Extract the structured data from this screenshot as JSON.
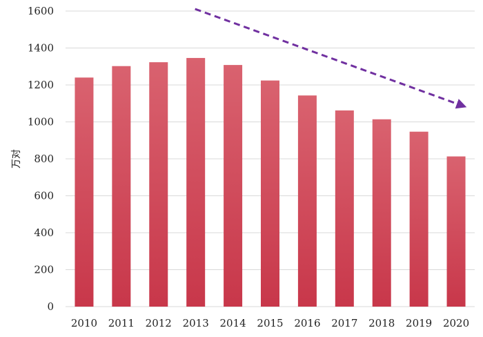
{
  "chart_data": {
    "type": "bar",
    "categories": [
      "2010",
      "2011",
      "2012",
      "2013",
      "2014",
      "2015",
      "2016",
      "2017",
      "2018",
      "2019",
      "2020"
    ],
    "values": [
      1240,
      1302,
      1323,
      1346,
      1308,
      1224,
      1143,
      1062,
      1014,
      947,
      813
    ],
    "title": "",
    "xlabel": "",
    "ylabel": "万对",
    "ylim": [
      0,
      1600
    ],
    "yticks": [
      0,
      200,
      400,
      600,
      800,
      1000,
      1200,
      1400,
      1600
    ],
    "grid": true,
    "bar_color_top": "#d9626f",
    "bar_color_bottom": "#c8374a",
    "trend_arrow": {
      "from": {
        "x": "2013",
        "y": 1600
      },
      "to": {
        "x": "2020",
        "y": 1085
      },
      "color": "#7030a0",
      "style": "dashed"
    }
  }
}
